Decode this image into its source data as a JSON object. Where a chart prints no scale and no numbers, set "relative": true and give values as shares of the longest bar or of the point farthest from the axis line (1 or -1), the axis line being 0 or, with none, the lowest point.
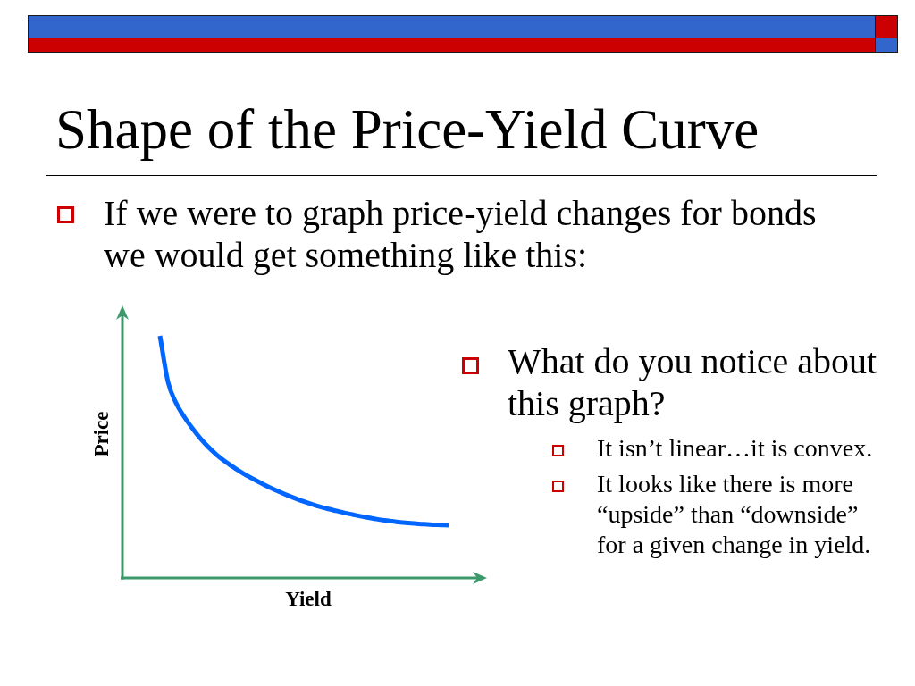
{
  "chart_data": {
    "type": "line",
    "title": "Shape of the Price-Yield Curve",
    "xlabel": "Yield",
    "ylabel": "Price",
    "categories": [
      null,
      null,
      null,
      null,
      null,
      null,
      null,
      null,
      null,
      null,
      null,
      null,
      null,
      null,
      null,
      null,
      null,
      null,
      null,
      null,
      null,
      null,
      null,
      null,
      null,
      null,
      null,
      null,
      null,
      null,
      null,
      null,
      null,
      null,
      null,
      null,
      null
    ],
    "values": [
      1,
      0.81,
      0.723,
      0.667,
      0.62,
      0.578,
      0.542,
      0.511,
      0.484,
      0.461,
      0.44,
      0.42,
      0.402,
      0.385,
      0.369,
      0.354,
      0.34,
      0.327,
      0.315,
      0.304,
      0.294,
      0.285,
      0.277,
      0.269,
      0.262,
      0.255,
      0.249,
      0.243,
      0.238,
      0.234,
      0.23,
      0.227,
      0.224,
      0.222,
      0.22,
      0.219,
      0.218
    ],
    "color": "#0066ff",
    "relative": true,
    "marker": "none",
    "line_style": "solid",
    "annotations": [
      "If we were to graph price-yield changes for bonds we would get something like this:",
      "What do you notice about this graph?",
      "It isn’t linear…it is convex.",
      "It looks like there is more “upside” than “downside” for a given change in yield."
    ]
  }
}
